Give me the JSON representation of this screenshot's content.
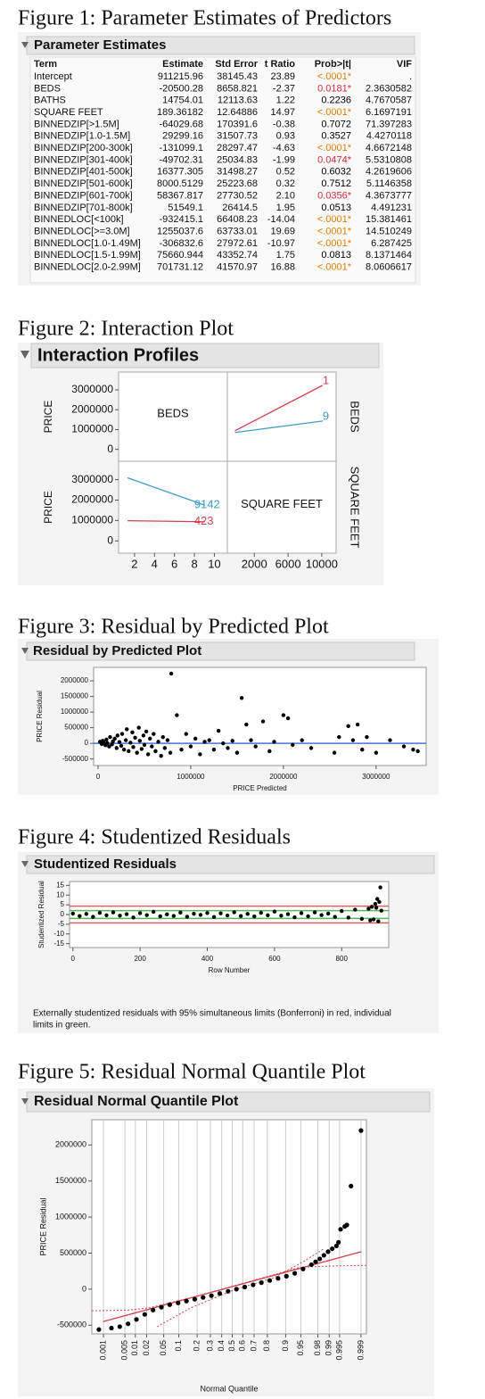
{
  "figures": [
    {
      "caption": "Figure 1: Parameter Estimates of Predictors",
      "header": "Parameter Estimates",
      "table": {
        "columns": [
          "Term",
          "Estimate",
          "Std Error",
          "t Ratio",
          "Prob>|t|",
          "VIF"
        ],
        "rows": [
          {
            "cells": [
              "Intercept",
              "911215.96",
              "38145.43",
              "23.89",
              "<.0001*",
              "."
            ],
            "prob_color": "#e07b00"
          },
          {
            "cells": [
              "BEDS",
              "-20500.28",
              "8658.821",
              "-2.37",
              "0.0181*",
              "2.3630582"
            ],
            "prob_color": "#d8283c"
          },
          {
            "cells": [
              "BATHS",
              "14754.01",
              "12113.63",
              "1.22",
              "0.2236",
              "4.7670587"
            ],
            "prob_color": "#000000"
          },
          {
            "cells": [
              "SQUARE FEET",
              "189.36182",
              "12.64886",
              "14.97",
              "<.0001*",
              "6.1697191"
            ],
            "prob_color": "#e07b00"
          },
          {
            "cells": [
              "BINNEDZIP[>1.5M]",
              "-64029.68",
              "170391.6",
              "-0.38",
              "0.7072",
              "71.397283"
            ],
            "prob_color": "#000000"
          },
          {
            "cells": [
              "BINNEDZIP[1.0-1.5M]",
              "29299.16",
              "31507.73",
              "0.93",
              "0.3527",
              "4.4270118"
            ],
            "prob_color": "#000000"
          },
          {
            "cells": [
              "BINNEDZIP[200-300k]",
              "-131099.1",
              "28297.47",
              "-4.63",
              "<.0001*",
              "4.6672148"
            ],
            "prob_color": "#e07b00"
          },
          {
            "cells": [
              "BINNEDZIP[301-400k]",
              "-49702.31",
              "25034.83",
              "-1.99",
              "0.0474*",
              "5.5310808"
            ],
            "prob_color": "#d8283c"
          },
          {
            "cells": [
              "BINNEDZIP[401-500k]",
              "16377.305",
              "31498.27",
              "0.52",
              "0.6032",
              "4.2619606"
            ],
            "prob_color": "#000000"
          },
          {
            "cells": [
              "BINNEDZIP[501-600k]",
              "8000.5129",
              "25223.68",
              "0.32",
              "0.7512",
              "5.1146358"
            ],
            "prob_color": "#000000"
          },
          {
            "cells": [
              "BINNEDZIP[601-700k]",
              "58367.817",
              "27730.52",
              "2.10",
              "0.0356*",
              "4.3673777"
            ],
            "prob_color": "#d8283c"
          },
          {
            "cells": [
              "BINNEDZIP[701-800k]",
              "51549.1",
              "26414.5",
              "1.95",
              "0.0513",
              "4.491231"
            ],
            "prob_color": "#000000"
          },
          {
            "cells": [
              "BINNEDLOC[<100k]",
              "-932415.1",
              "66408.23",
              "-14.04",
              "<.0001*",
              "15.381461"
            ],
            "prob_color": "#e07b00"
          },
          {
            "cells": [
              "BINNEDLOC[>=3.0M]",
              "1255037.6",
              "63733.01",
              "19.69",
              "<.0001*",
              "14.510249"
            ],
            "prob_color": "#e07b00"
          },
          {
            "cells": [
              "BINNEDLOC[1.0-1.49M]",
              "-306832.6",
              "27972.61",
              "-10.97",
              "<.0001*",
              "6.287425"
            ],
            "prob_color": "#e07b00"
          },
          {
            "cells": [
              "BINNEDLOC[1.5-1.99M]",
              "75660.944",
              "43352.74",
              "1.75",
              "0.0813",
              "8.1371464"
            ],
            "prob_color": "#000000"
          },
          {
            "cells": [
              "BINNEDLOC[2.0-2.99M]",
              "701731.12",
              "41570.97",
              "16.88",
              "<.0001*",
              "8.0606617"
            ],
            "prob_color": "#e07b00"
          }
        ]
      }
    },
    {
      "caption": "Figure 2: Interaction Plot",
      "header": "Interaction Profiles",
      "chart": {
        "type": "interaction",
        "y_label": "PRICE",
        "factors": [
          "BEDS",
          "SQUARE FEET"
        ],
        "ylim": [
          -600000,
          3900000
        ],
        "yticks": [
          0,
          1000000,
          2000000,
          3000000
        ],
        "x_axes": [
          {
            "xlim": [
              0.4,
              11.3
            ],
            "xticks": [
              2,
              4,
              6,
              8,
              10
            ]
          },
          {
            "xlim": [
              -1200,
              11700
            ],
            "xticks": [
              2000,
              6000,
              10000
            ]
          }
        ],
        "profiles": [
          [
            {
              "name": "1",
              "color": "#d0424e",
              "x": [
                -300,
                10100
              ],
              "values": [
                940000,
                3230000
              ]
            },
            {
              "name": "9",
              "color": "#3d9cc4",
              "x": [
                -300,
                10100
              ],
              "values": [
                850000,
                1430000
              ]
            }
          ],
          [
            {
              "name": "9142",
              "color": "#3d9cc4",
              "x": [
                1.3,
                9.05
              ],
              "values": [
                3090000,
                1750000
              ]
            },
            {
              "name": "423",
              "color": "#d0424e",
              "x": [
                1.3,
                9.05
              ],
              "values": [
                990000,
                940000
              ]
            }
          ]
        ]
      }
    },
    {
      "caption": "Figure 3: Residual by Predicted Plot",
      "header": "Residual by Predicted Plot",
      "chart": {
        "type": "scatter",
        "x_label": "PRICE Predicted",
        "y_label": "PRICE Residual",
        "color": "#000000",
        "xlim": [
          -48000,
          3540000
        ],
        "ylim": [
          -710000,
          2430000
        ],
        "xticks": [
          0,
          1000000,
          2000000,
          3000000
        ],
        "yticks": [
          -500000,
          0,
          500000,
          1000000,
          1500000,
          2000000
        ],
        "ref_lines": [
          {
            "value": 0,
            "color": "#4a72d8"
          }
        ],
        "x": [
          20000,
          40000,
          50000,
          60000,
          80000,
          90000,
          100000,
          120000,
          130000,
          150000,
          160000,
          180000,
          200000,
          210000,
          230000,
          250000,
          260000,
          280000,
          300000,
          310000,
          330000,
          350000,
          370000,
          380000,
          400000,
          420000,
          440000,
          450000,
          470000,
          490000,
          500000,
          520000,
          540000,
          560000,
          580000,
          600000,
          620000,
          650000,
          680000,
          700000,
          720000,
          750000,
          780000,
          790000,
          850000,
          900000,
          950000,
          1000000,
          1050000,
          1100000,
          1150000,
          1200000,
          1250000,
          1300000,
          1350000,
          1400000,
          1450000,
          1500000,
          1550000,
          1600000,
          1650000,
          1700000,
          1780000,
          1850000,
          1900000,
          2000000,
          2050000,
          2100000,
          2200000,
          2300000,
          2550000,
          2600000,
          2700000,
          2750000,
          2800000,
          2850000,
          2900000,
          3000000,
          3150000,
          3300000,
          3400000,
          3450000
        ],
        "values": [
          50000,
          -20000,
          80000,
          30000,
          -60000,
          120000,
          10000,
          -100000,
          200000,
          -30000,
          60000,
          150000,
          -150000,
          250000,
          40000,
          -80000,
          300000,
          -200000,
          100000,
          450000,
          -250000,
          20000,
          350000,
          -120000,
          180000,
          -300000,
          500000,
          80000,
          -180000,
          250000,
          -50000,
          380000,
          -350000,
          150000,
          -100000,
          300000,
          -250000,
          50000,
          -400000,
          200000,
          -150000,
          100000,
          -300000,
          2230000,
          900000,
          -200000,
          300000,
          -100000,
          150000,
          -350000,
          50000,
          100000,
          -200000,
          400000,
          0,
          -150000,
          80000,
          -300000,
          1450000,
          600000,
          100000,
          -100000,
          700000,
          -250000,
          50000,
          900000,
          800000,
          -50000,
          100000,
          -150000,
          -300000,
          200000,
          550000,
          100000,
          600000,
          -200000,
          200000,
          -300000,
          100000,
          -100000,
          -200000,
          -250000
        ]
      }
    },
    {
      "caption": "Figure 4: Studentized Residuals",
      "header": "Studentized Residuals",
      "chart": {
        "type": "scatter",
        "x_label": "Row Number",
        "y_label": "Studentized Residual",
        "color": "#000000",
        "xlim": [
          -10,
          940
        ],
        "ylim": [
          -17,
          17
        ],
        "xticks": [
          0,
          200,
          400,
          600,
          800
        ],
        "yticks": [
          -15,
          -10,
          -5,
          0,
          5,
          10,
          15
        ],
        "ref_lines": [
          {
            "value": 4.3,
            "color": "#e0606a"
          },
          {
            "value": -4.3,
            "color": "#e0606a"
          },
          {
            "value": 2,
            "color": "#57b85a"
          },
          {
            "value": -2,
            "color": "#57b85a"
          }
        ],
        "x": [
          0,
          20,
          40,
          60,
          80,
          100,
          120,
          140,
          160,
          180,
          200,
          220,
          240,
          260,
          280,
          300,
          320,
          340,
          360,
          380,
          400,
          420,
          440,
          460,
          480,
          500,
          520,
          540,
          560,
          580,
          600,
          620,
          640,
          660,
          680,
          700,
          720,
          740,
          760,
          780,
          800,
          820,
          840,
          860,
          880,
          885,
          890,
          895,
          900,
          903,
          906,
          909,
          912,
          915,
          918
        ],
        "values": [
          0.5,
          -0.8,
          0.3,
          -1.2,
          0.9,
          -0.4,
          1.1,
          -0.6,
          0.2,
          -1.5,
          0.7,
          -0.3,
          1.4,
          -0.9,
          0.1,
          -0.7,
          1.0,
          -1.1,
          0.4,
          -0.2,
          0.8,
          -1.3,
          0.6,
          -0.5,
          1.2,
          -0.8,
          0.3,
          -1.0,
          0.9,
          -0.4,
          1.5,
          -0.6,
          0.2,
          -1.4,
          0.7,
          -0.9,
          1.1,
          -0.3,
          0.5,
          -1.2,
          1.8,
          -1.6,
          2.5,
          -2.2,
          3.0,
          -3.0,
          4.0,
          -2.5,
          5.5,
          3.5,
          8.0,
          -3.5,
          6.5,
          14.0,
          2.0
        ],
        "note": [
          "Externally studentized residuals with 95% simultaneous limits (Bonferroni) in red, individual",
          "limits in green."
        ]
      }
    },
    {
      "caption": "Figure 5: Residual Normal Quantile Plot",
      "header": "Residual Normal Quantile Plot",
      "chart": {
        "type": "quantile",
        "x_label": "Normal Quantile",
        "y_label": "PRICE Residual",
        "color": "#000000",
        "grid": true,
        "xlim": [
          -3.37,
          3.22
        ],
        "ylim": [
          -620000,
          2350000
        ],
        "xticks": [
          {
            "value": -3.09,
            "label": "0.001"
          },
          {
            "value": -2.576,
            "label": "0.005"
          },
          {
            "value": -2.326,
            "label": "0.01"
          },
          {
            "value": -2.054,
            "label": "0.02"
          },
          {
            "value": -1.645,
            "label": "0.05"
          },
          {
            "value": -1.282,
            "label": "0.1"
          },
          {
            "value": -0.842,
            "label": "0.2"
          },
          {
            "value": -0.524,
            "label": "0.3"
          },
          {
            "value": -0.253,
            "label": "0.4"
          },
          {
            "value": 0,
            "label": "0.5"
          },
          {
            "value": 0.253,
            "label": "0.6"
          },
          {
            "value": 0.524,
            "label": "0.7"
          },
          {
            "value": 0.842,
            "label": "0.8"
          },
          {
            "value": 1.282,
            "label": "0.9"
          },
          {
            "value": 1.645,
            "label": "0.95"
          },
          {
            "value": 2.054,
            "label": "0.98"
          },
          {
            "value": 2.326,
            "label": "0.99"
          },
          {
            "value": 2.576,
            "label": "0.995"
          },
          {
            "value": 3.09,
            "label": "0.999"
          }
        ],
        "yticks": [
          -500000,
          0,
          500000,
          1000000,
          1500000,
          2000000
        ],
        "x": [
          -3.2,
          -2.9,
          -2.7,
          -2.5,
          -2.3,
          -2.1,
          -1.9,
          -1.7,
          -1.5,
          -1.3,
          -1.1,
          -0.9,
          -0.7,
          -0.5,
          -0.3,
          -0.1,
          0.1,
          0.3,
          0.5,
          0.7,
          0.9,
          1.1,
          1.3,
          1.5,
          1.7,
          1.9,
          2.0,
          2.1,
          2.2,
          2.3,
          2.4,
          2.5,
          2.55,
          2.6,
          2.7,
          2.75,
          2.85,
          3.09
        ],
        "values": [
          -560000,
          -540000,
          -520000,
          -480000,
          -420000,
          -350000,
          -290000,
          -250000,
          -215000,
          -190000,
          -165000,
          -140000,
          -115000,
          -90000,
          -60000,
          -30000,
          0,
          30000,
          60000,
          90000,
          120000,
          150000,
          180000,
          220000,
          280000,
          340000,
          380000,
          420000,
          470000,
          520000,
          560000,
          600000,
          650000,
          830000,
          870000,
          890000,
          1430000,
          2200000
        ],
        "fit_line": {
          "color": "#d0424e",
          "x": [
            -3.1,
            3.1
          ],
          "values": [
            -450000,
            520000
          ]
        },
        "bands": [
          {
            "color": "#d0424e",
            "x": [
              -3.37,
              -2.5,
              -2,
              -1,
              0,
              1,
              1.6,
              2.3,
              3.22
            ],
            "values": [
              -300000,
              -290000,
              -260000,
              -120000,
              40000,
              200000,
              300000,
              320000,
              330000
            ]
          },
          {
            "color": "#d0424e",
            "x": [
              -1.8,
              -1,
              0,
              1,
              1.7,
              2.2
            ],
            "values": [
              -520000,
              -260000,
              -20000,
              160000,
              380000,
              560000
            ]
          }
        ]
      }
    }
  ]
}
